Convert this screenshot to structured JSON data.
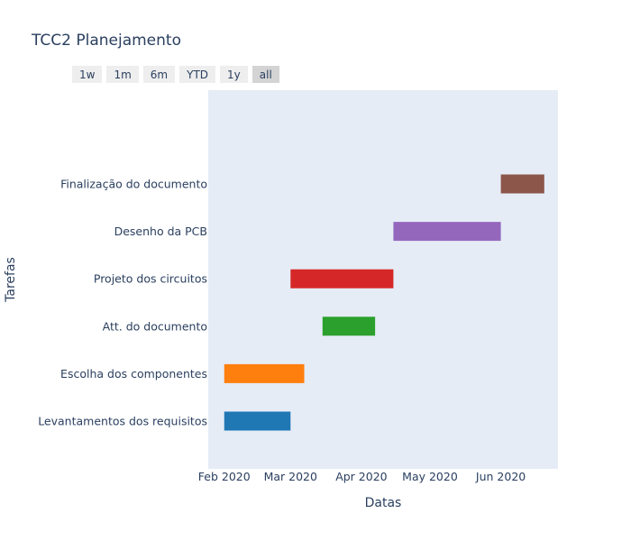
{
  "chart_data": {
    "type": "gantt",
    "title": "TCC2 Planejamento",
    "xlabel": "Datas",
    "ylabel": "Tarefas",
    "x_axis": "date",
    "xlim": [
      "2020-01-25",
      "2020-06-26"
    ],
    "x_ticks": [
      {
        "value": "2020-02-01",
        "label": "Feb 2020"
      },
      {
        "value": "2020-03-01",
        "label": "Mar 2020"
      },
      {
        "value": "2020-04-01",
        "label": "Apr 2020"
      },
      {
        "value": "2020-05-01",
        "label": "May 2020"
      },
      {
        "value": "2020-06-01",
        "label": "Jun 2020"
      }
    ],
    "grid": false,
    "tasks": [
      {
        "task": "Levantamentos dos requisitos",
        "start": "2020-02-01",
        "end": "2020-03-01",
        "color": "#1f77b4"
      },
      {
        "task": "Escolha dos componentes",
        "start": "2020-02-01",
        "end": "2020-03-07",
        "color": "#ff7f0e"
      },
      {
        "task": "Att. do documento",
        "start": "2020-03-15",
        "end": "2020-04-07",
        "color": "#2ca02c"
      },
      {
        "task": "Projeto dos circuitos",
        "start": "2020-03-01",
        "end": "2020-04-15",
        "color": "#d62728"
      },
      {
        "task": "Desenho da PCB",
        "start": "2020-04-15",
        "end": "2020-06-01",
        "color": "#9467bd"
      },
      {
        "task": "Finalização do documento",
        "start": "2020-06-01",
        "end": "2020-06-20",
        "color": "#8c564b"
      }
    ]
  },
  "range_selector": {
    "buttons": [
      {
        "label": "1w",
        "active": false
      },
      {
        "label": "1m",
        "active": false
      },
      {
        "label": "6m",
        "active": false
      },
      {
        "label": "YTD",
        "active": false
      },
      {
        "label": "1y",
        "active": false
      },
      {
        "label": "all",
        "active": true
      }
    ]
  },
  "colors": {
    "plot_background": "#e5ecf6",
    "text": "#2a3f5f"
  }
}
